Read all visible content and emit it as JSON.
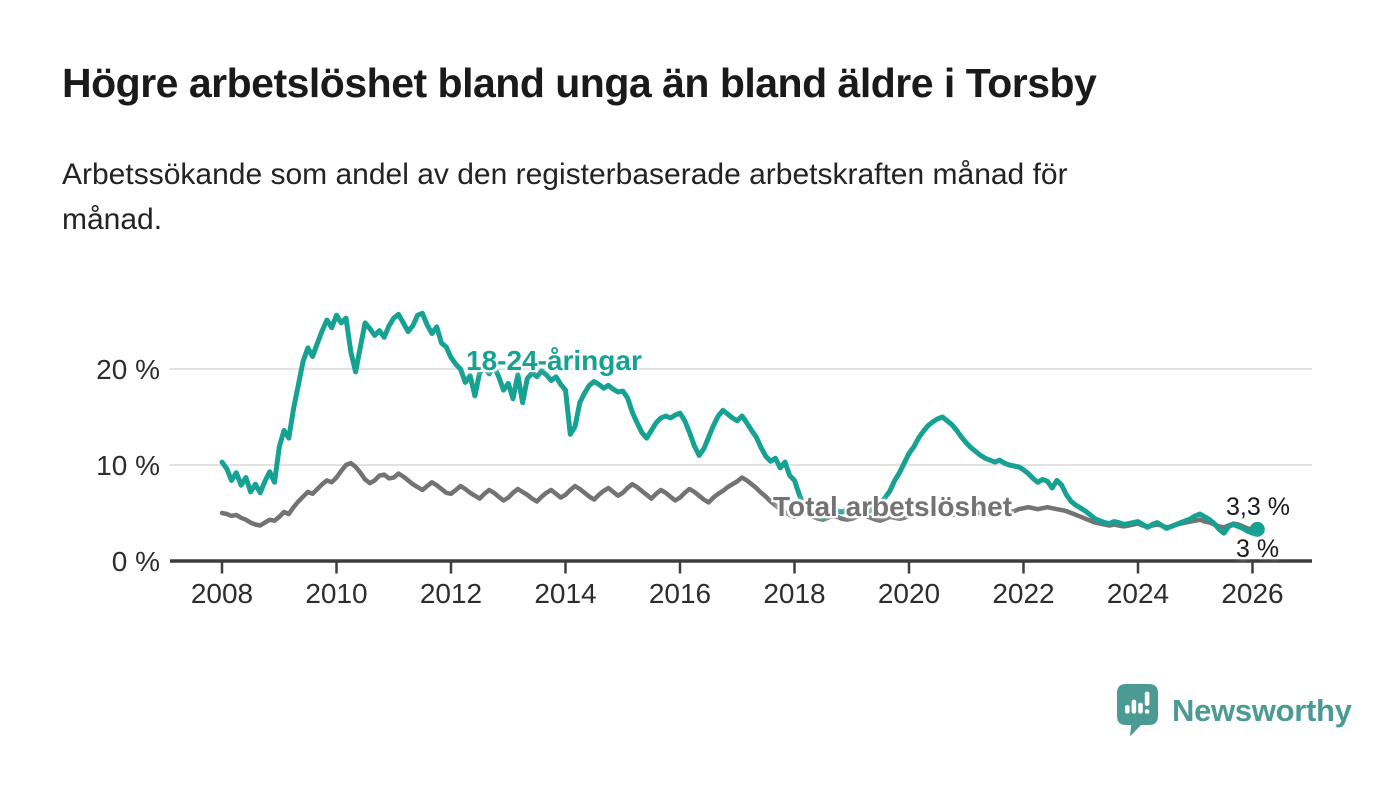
{
  "header": {
    "title": "Högre arbetslöshet bland unga än bland äldre i Torsby",
    "subtitle_line1": "Arbetssökande som andel av den registerbaserade arbetskraften månad för",
    "subtitle_line2": "månad."
  },
  "chart_data": {
    "type": "line",
    "title": "Högre arbetslöshet bland unga än bland äldre i Torsby",
    "subtitle": "Arbetssökande som andel av den registerbaserade arbetskraften månad för månad.",
    "x_start": "2008-01",
    "x_end": "2026-02",
    "x_frequency": "monthly",
    "xlabel": "",
    "ylabel": "",
    "ylim": [
      0,
      27
    ],
    "grid": "horizontal",
    "legend_position": "inline-labels",
    "yticks": [
      {
        "value": 0,
        "label": "0 %"
      },
      {
        "value": 10,
        "label": "10 %"
      },
      {
        "value": 20,
        "label": "20 %"
      }
    ],
    "xticks": [
      {
        "value": 2008,
        "label": "2008"
      },
      {
        "value": 2010,
        "label": "2010"
      },
      {
        "value": 2012,
        "label": "2012"
      },
      {
        "value": 2014,
        "label": "2014"
      },
      {
        "value": 2016,
        "label": "2016"
      },
      {
        "value": 2018,
        "label": "2018"
      },
      {
        "value": 2020,
        "label": "2020"
      },
      {
        "value": 2022,
        "label": "2022"
      },
      {
        "value": 2024,
        "label": "2024"
      },
      {
        "value": 2026,
        "label": "2026"
      }
    ],
    "series": [
      {
        "name": "18-24-åringar",
        "color": "#16a293",
        "end_label": "3,3 %",
        "end_value": 3.3,
        "values": [
          10.3,
          9.6,
          8.4,
          9.2,
          7.9,
          8.7,
          7.2,
          8.0,
          7.1,
          8.3,
          9.3,
          8.2,
          11.9,
          13.6,
          12.8,
          15.9,
          18.3,
          20.8,
          22.2,
          21.3,
          22.7,
          24.0,
          25.1,
          24.3,
          25.6,
          24.8,
          25.3,
          21.8,
          19.7,
          22.3,
          24.8,
          24.2,
          23.5,
          24.0,
          23.3,
          24.5,
          25.3,
          25.7,
          24.8,
          23.9,
          24.5,
          25.6,
          25.8,
          24.6,
          23.7,
          24.4,
          22.7,
          22.3,
          21.2,
          20.5,
          20.0,
          18.6,
          19.3,
          17.2,
          19.6,
          20.2,
          19.5,
          20.3,
          19.2,
          17.8,
          18.5,
          16.9,
          19.4,
          16.5,
          19.0,
          19.6,
          19.2,
          19.8,
          19.4,
          18.8,
          19.2,
          18.4,
          17.8,
          13.2,
          14.0,
          16.5,
          17.5,
          18.3,
          18.7,
          18.4,
          18.0,
          18.3,
          17.9,
          17.6,
          17.7,
          17.0,
          15.5,
          14.4,
          13.4,
          12.8,
          13.6,
          14.4,
          14.9,
          15.1,
          14.9,
          15.2,
          15.4,
          14.6,
          13.4,
          12.0,
          11.0,
          11.7,
          12.9,
          14.1,
          15.1,
          15.7,
          15.3,
          14.9,
          14.6,
          15.1,
          14.4,
          13.6,
          12.9,
          11.8,
          10.9,
          10.4,
          10.7,
          9.7,
          10.3,
          8.9,
          8.4,
          6.9,
          5.8,
          5.2,
          4.9,
          4.7,
          4.6,
          4.8,
          5.0,
          5.2,
          5.1,
          5.3,
          5.5,
          5.3,
          5.1,
          5.0,
          5.3,
          5.6,
          6.0,
          6.6,
          7.3,
          8.4,
          9.2,
          10.2,
          11.2,
          11.9,
          12.8,
          13.5,
          14.1,
          14.5,
          14.8,
          15.0,
          14.6,
          14.2,
          13.6,
          12.9,
          12.3,
          11.8,
          11.4,
          11.0,
          10.7,
          10.5,
          10.3,
          10.5,
          10.2,
          10.0,
          9.9,
          9.8,
          9.5,
          9.1,
          8.6,
          8.2,
          8.5,
          8.3,
          7.6,
          8.4,
          7.9,
          6.9,
          6.2,
          5.8,
          5.5,
          5.2,
          4.8,
          4.4,
          4.2,
          4.0,
          3.9,
          4.1,
          4.0,
          3.8,
          3.9,
          4.0,
          4.1,
          3.8,
          3.5,
          3.8,
          4.0,
          3.7,
          3.4,
          3.6,
          3.8,
          4.0,
          4.2,
          4.4,
          4.7,
          4.9,
          4.6,
          4.3,
          3.9,
          3.3,
          2.9,
          3.6,
          3.8,
          3.6,
          3.4,
          3.1,
          2.9,
          3.3
        ]
      },
      {
        "name": "Total arbetslöshet",
        "color": "#737373",
        "end_label": "3 %",
        "end_value": 3.0,
        "values": [
          5.0,
          4.9,
          4.7,
          4.8,
          4.5,
          4.3,
          4.0,
          3.8,
          3.7,
          4.0,
          4.3,
          4.2,
          4.6,
          5.1,
          4.9,
          5.6,
          6.2,
          6.7,
          7.2,
          7.0,
          7.5,
          8.0,
          8.4,
          8.2,
          8.7,
          9.4,
          10.0,
          10.2,
          9.8,
          9.2,
          8.5,
          8.1,
          8.4,
          8.9,
          9.0,
          8.6,
          8.7,
          9.1,
          8.8,
          8.4,
          8.0,
          7.7,
          7.4,
          7.8,
          8.2,
          7.9,
          7.5,
          7.1,
          7.0,
          7.4,
          7.8,
          7.5,
          7.1,
          6.8,
          6.5,
          7.0,
          7.4,
          7.1,
          6.7,
          6.3,
          6.6,
          7.1,
          7.5,
          7.2,
          6.9,
          6.5,
          6.2,
          6.7,
          7.1,
          7.4,
          7.0,
          6.6,
          6.9,
          7.4,
          7.8,
          7.5,
          7.1,
          6.7,
          6.4,
          6.9,
          7.3,
          7.6,
          7.2,
          6.8,
          7.1,
          7.6,
          8.0,
          7.7,
          7.3,
          6.9,
          6.5,
          7.0,
          7.4,
          7.1,
          6.7,
          6.3,
          6.6,
          7.1,
          7.5,
          7.2,
          6.8,
          6.4,
          6.1,
          6.6,
          7.0,
          7.3,
          7.7,
          8.0,
          8.3,
          8.7,
          8.4,
          8.0,
          7.6,
          7.1,
          6.7,
          6.2,
          5.8,
          5.4,
          5.1,
          4.8,
          4.6,
          4.8,
          5.0,
          4.8,
          4.6,
          4.4,
          4.3,
          4.5,
          4.7,
          4.6,
          4.4,
          4.3,
          4.4,
          4.6,
          4.8,
          4.7,
          4.5,
          4.3,
          4.2,
          4.4,
          4.6,
          4.5,
          4.4,
          4.5,
          4.7,
          4.9,
          5.1,
          5.3,
          5.4,
          5.3,
          5.1,
          5.0,
          4.9,
          4.8,
          4.8,
          4.9,
          5.0,
          5.2,
          5.1,
          5.0,
          4.9,
          4.8,
          4.7,
          4.8,
          5.0,
          5.1,
          5.2,
          5.4,
          5.5,
          5.6,
          5.5,
          5.4,
          5.5,
          5.6,
          5.5,
          5.4,
          5.3,
          5.2,
          5.0,
          4.8,
          4.6,
          4.4,
          4.2,
          4.0,
          3.9,
          3.8,
          3.7,
          3.8,
          3.7,
          3.6,
          3.7,
          3.8,
          3.9,
          3.7,
          3.6,
          3.7,
          3.8,
          3.7,
          3.5,
          3.6,
          3.8,
          3.9,
          4.0,
          4.1,
          4.2,
          4.3,
          4.1,
          4.0,
          3.8,
          3.6,
          3.5,
          3.7,
          3.9,
          3.8,
          3.6,
          3.4,
          3.2,
          3.0
        ]
      }
    ],
    "colors": {
      "axis": "#3d3d3d",
      "gridline": "#d8d8d8",
      "tick_text": "#2d2d2d"
    }
  },
  "branding": {
    "logo_text": "Newsworthy",
    "logo_color": "#4b9b94",
    "logo_icon": "bar-chart-speech-bubble"
  }
}
